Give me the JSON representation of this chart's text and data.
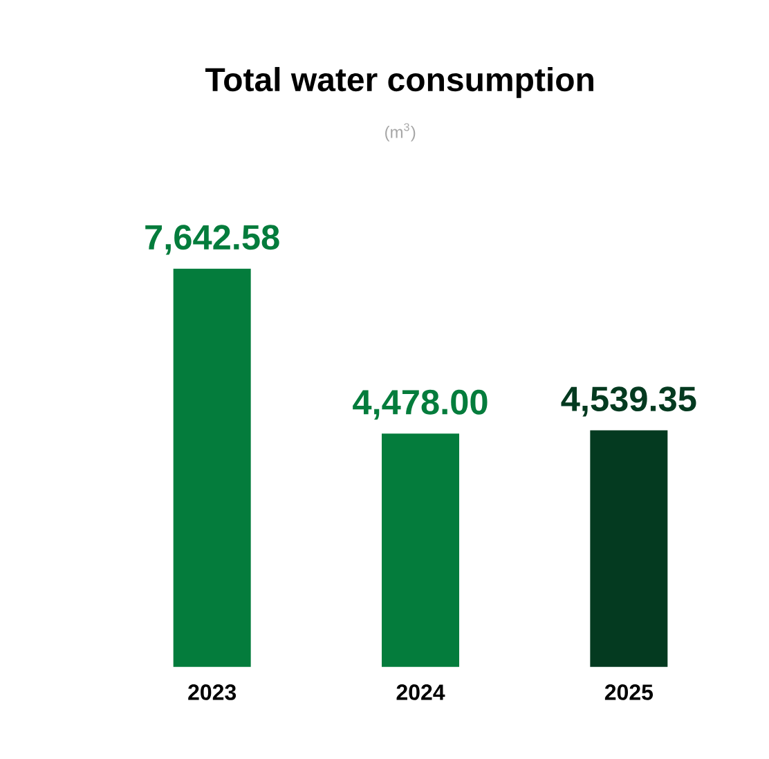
{
  "chart_data": {
    "type": "bar",
    "title": "Total water consumption",
    "subtitle": "(m$^{3}$)",
    "categories": [
      "2023",
      "2024",
      "2025"
    ],
    "values": [
      7642.58,
      4478.0,
      4539.35
    ],
    "colors": [
      "#047c3c",
      "#047c3c",
      "#043a20"
    ],
    "value_labels": [
      "7,642.58",
      "4,478.00",
      "4,539.35"
    ],
    "tick_labels": "x"
  }
}
